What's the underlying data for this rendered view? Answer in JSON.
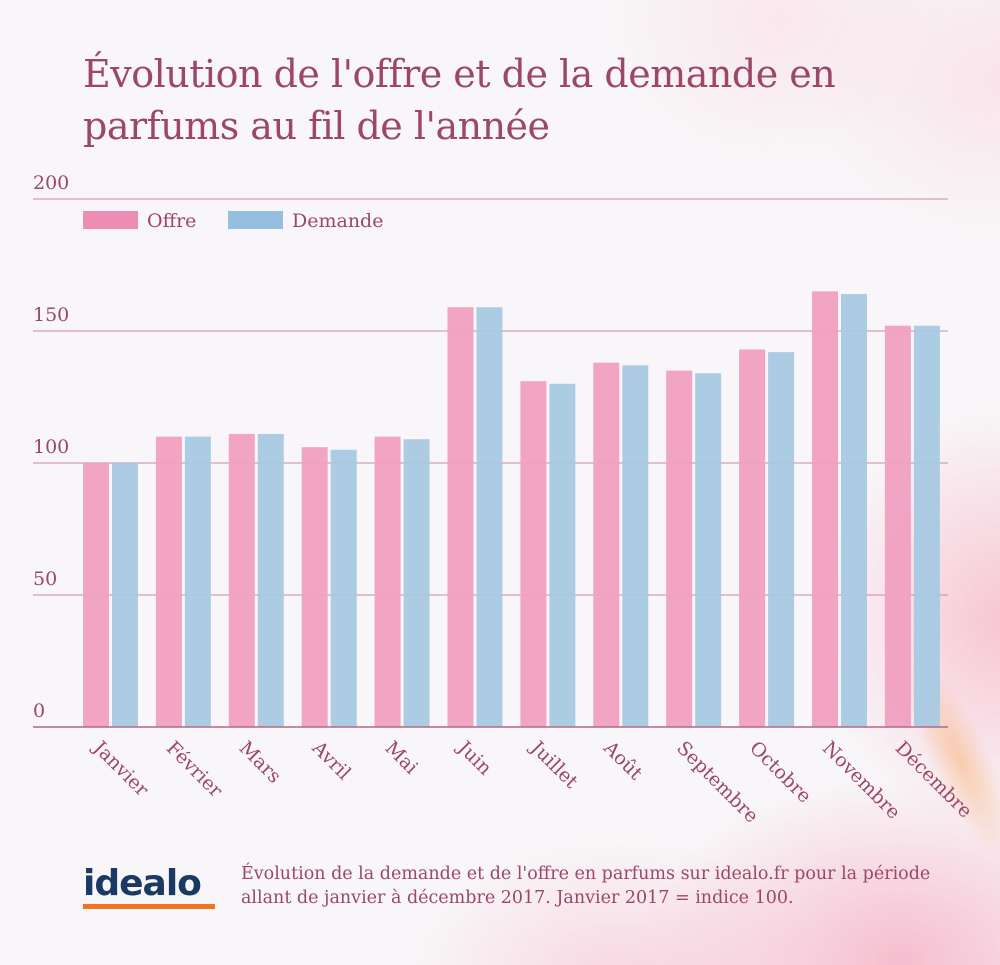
{
  "title": "Évolution de l'offre et de la demande en parfums au fil de l'année",
  "colors": {
    "offre": "#f0a0c0",
    "demande": "#a8c9e2",
    "text": "#9c4668",
    "grid": "#c98aa5",
    "logo_blue": "#1b3a63",
    "logo_orange": "#f5731e"
  },
  "chart_data": {
    "type": "bar",
    "title": "Évolution de l'offre et de la demande en parfums au fil de l'année",
    "xlabel": "",
    "ylabel": "",
    "ylim": [
      0,
      200
    ],
    "yticks": [
      0,
      50,
      100,
      150,
      200
    ],
    "grid": true,
    "legend_position": "top-left",
    "categories": [
      "Janvier",
      "Février",
      "Mars",
      "Avril",
      "Mai",
      "Juin",
      "Juillet",
      "Août",
      "Septembre",
      "Octobre",
      "Novembre",
      "Décembre"
    ],
    "series": [
      {
        "name": "Offre",
        "values": [
          100,
          110,
          111,
          106,
          110,
          159,
          131,
          138,
          135,
          143,
          165,
          152
        ]
      },
      {
        "name": "Demande",
        "values": [
          100,
          110,
          111,
          105,
          109,
          159,
          130,
          137,
          134,
          142,
          164,
          152
        ]
      }
    ]
  },
  "footer": {
    "logo": "idealo",
    "note": "Évolution de la demande et de l'offre en parfums sur idealo.fr pour la période allant de janvier à décembre 2017. Janvier 2017 = indice 100."
  }
}
